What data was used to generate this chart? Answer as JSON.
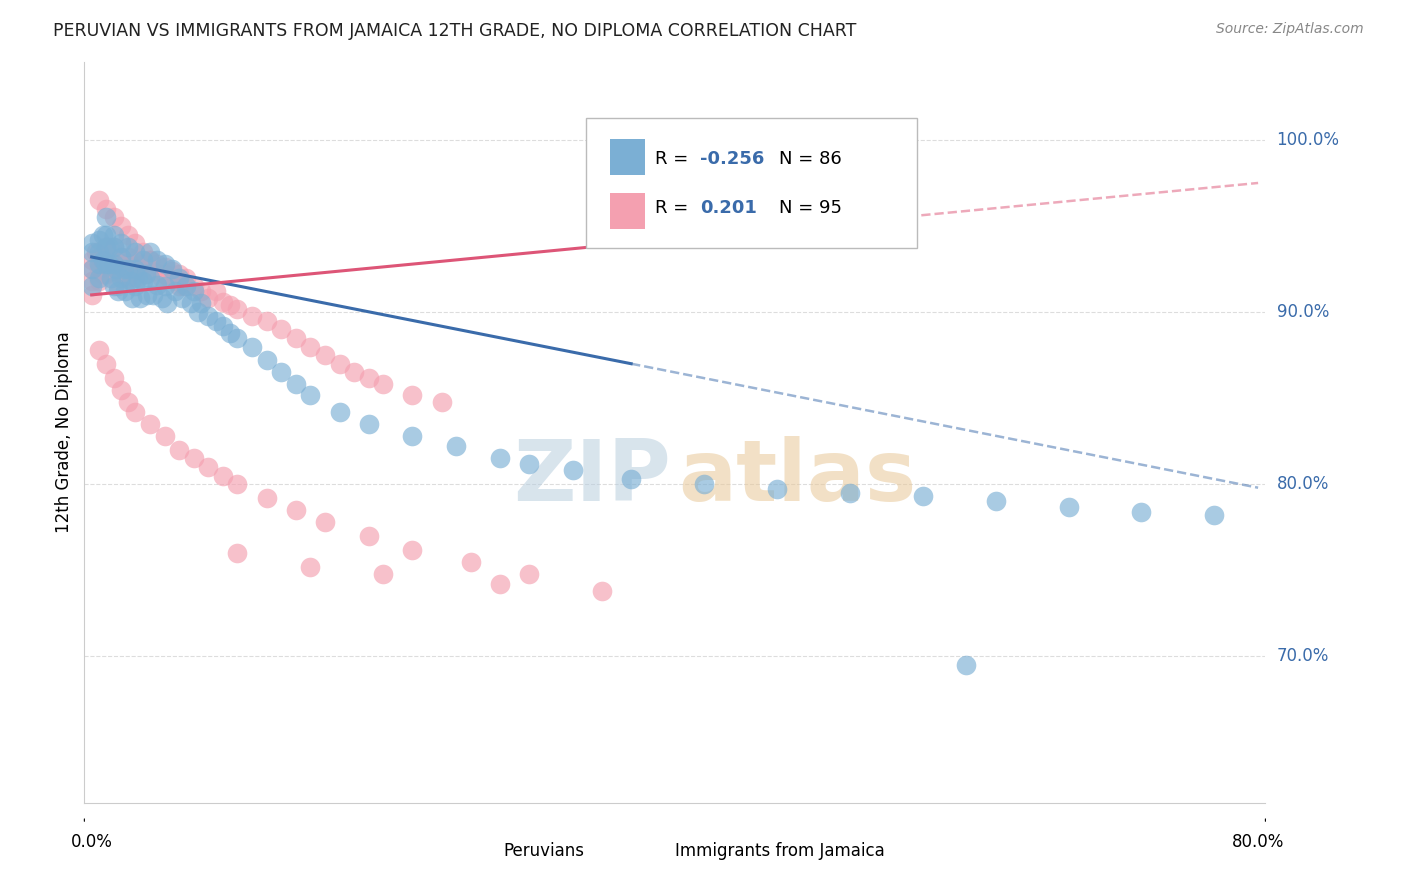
{
  "title": "PERUVIAN VS IMMIGRANTS FROM JAMAICA 12TH GRADE, NO DIPLOMA CORRELATION CHART",
  "source": "Source: ZipAtlas.com",
  "ylabel": "12th Grade, No Diploma",
  "legend_blue_label": "Peruvians",
  "legend_pink_label": "Immigrants from Jamaica",
  "R_blue": -0.256,
  "N_blue": 86,
  "R_pink": 0.201,
  "N_pink": 95,
  "blue_color": "#7BAFD4",
  "pink_color": "#F4A0B0",
  "blue_trend_color": "#3A6BAA",
  "pink_trend_color": "#DD5577",
  "xlim": [
    0.0,
    0.8
  ],
  "ylim": [
    0.615,
    1.045
  ],
  "yticks": [
    0.7,
    0.8,
    0.9,
    1.0
  ],
  "ytick_labels": [
    "70.0%",
    "80.0%",
    "90.0%",
    "100.0%"
  ],
  "blue_trend_x0": 0.0,
  "blue_trend_y0": 0.932,
  "blue_trend_x1": 0.8,
  "blue_trend_y1": 0.798,
  "pink_trend_x0": 0.0,
  "pink_trend_y0": 0.91,
  "pink_trend_x1": 0.8,
  "pink_trend_y1": 0.975,
  "blue_scatter_x": [
    0.0,
    0.0,
    0.0,
    0.0,
    0.005,
    0.005,
    0.005,
    0.005,
    0.008,
    0.008,
    0.01,
    0.01,
    0.01,
    0.01,
    0.012,
    0.012,
    0.013,
    0.015,
    0.015,
    0.015,
    0.015,
    0.017,
    0.018,
    0.02,
    0.02,
    0.02,
    0.022,
    0.023,
    0.025,
    0.025,
    0.027,
    0.028,
    0.03,
    0.03,
    0.03,
    0.032,
    0.033,
    0.035,
    0.035,
    0.037,
    0.038,
    0.04,
    0.04,
    0.042,
    0.045,
    0.045,
    0.048,
    0.05,
    0.05,
    0.052,
    0.055,
    0.057,
    0.06,
    0.062,
    0.065,
    0.068,
    0.07,
    0.073,
    0.075,
    0.08,
    0.085,
    0.09,
    0.095,
    0.1,
    0.11,
    0.12,
    0.13,
    0.14,
    0.15,
    0.17,
    0.19,
    0.22,
    0.25,
    0.28,
    0.3,
    0.33,
    0.37,
    0.42,
    0.47,
    0.52,
    0.57,
    0.62,
    0.67,
    0.72,
    0.77,
    0.6
  ],
  "blue_scatter_y": [
    0.94,
    0.935,
    0.925,
    0.915,
    0.942,
    0.935,
    0.928,
    0.92,
    0.945,
    0.93,
    0.955,
    0.945,
    0.938,
    0.928,
    0.938,
    0.928,
    0.92,
    0.945,
    0.938,
    0.928,
    0.915,
    0.925,
    0.912,
    0.94,
    0.932,
    0.92,
    0.925,
    0.912,
    0.938,
    0.925,
    0.918,
    0.908,
    0.935,
    0.925,
    0.915,
    0.92,
    0.908,
    0.93,
    0.918,
    0.922,
    0.91,
    0.935,
    0.92,
    0.91,
    0.93,
    0.916,
    0.908,
    0.928,
    0.915,
    0.905,
    0.925,
    0.912,
    0.92,
    0.908,
    0.915,
    0.905,
    0.912,
    0.9,
    0.905,
    0.898,
    0.895,
    0.892,
    0.888,
    0.885,
    0.88,
    0.872,
    0.865,
    0.858,
    0.852,
    0.842,
    0.835,
    0.828,
    0.822,
    0.815,
    0.812,
    0.808,
    0.803,
    0.8,
    0.797,
    0.795,
    0.793,
    0.79,
    0.787,
    0.784,
    0.782,
    0.695
  ],
  "pink_scatter_x": [
    0.0,
    0.0,
    0.0,
    0.0,
    0.003,
    0.005,
    0.005,
    0.005,
    0.007,
    0.008,
    0.01,
    0.01,
    0.01,
    0.012,
    0.013,
    0.015,
    0.015,
    0.017,
    0.018,
    0.02,
    0.02,
    0.022,
    0.025,
    0.025,
    0.027,
    0.03,
    0.03,
    0.032,
    0.035,
    0.037,
    0.04,
    0.042,
    0.045,
    0.048,
    0.05,
    0.053,
    0.055,
    0.058,
    0.06,
    0.063,
    0.065,
    0.07,
    0.075,
    0.08,
    0.085,
    0.09,
    0.095,
    0.1,
    0.11,
    0.12,
    0.13,
    0.14,
    0.15,
    0.16,
    0.17,
    0.18,
    0.19,
    0.2,
    0.22,
    0.24,
    0.005,
    0.01,
    0.015,
    0.02,
    0.025,
    0.03,
    0.035,
    0.04,
    0.05,
    0.06,
    0.005,
    0.01,
    0.015,
    0.02,
    0.025,
    0.03,
    0.04,
    0.05,
    0.06,
    0.07,
    0.08,
    0.09,
    0.1,
    0.12,
    0.14,
    0.16,
    0.19,
    0.22,
    0.26,
    0.3,
    0.1,
    0.15,
    0.2,
    0.28,
    0.35
  ],
  "pink_scatter_y": [
    0.93,
    0.925,
    0.918,
    0.91,
    0.935,
    0.932,
    0.925,
    0.918,
    0.93,
    0.922,
    0.938,
    0.93,
    0.922,
    0.932,
    0.924,
    0.938,
    0.928,
    0.925,
    0.915,
    0.932,
    0.922,
    0.928,
    0.932,
    0.92,
    0.928,
    0.93,
    0.92,
    0.925,
    0.928,
    0.922,
    0.93,
    0.924,
    0.928,
    0.92,
    0.926,
    0.92,
    0.924,
    0.918,
    0.922,
    0.915,
    0.92,
    0.915,
    0.912,
    0.908,
    0.912,
    0.906,
    0.904,
    0.902,
    0.898,
    0.895,
    0.89,
    0.885,
    0.88,
    0.875,
    0.87,
    0.865,
    0.862,
    0.858,
    0.852,
    0.848,
    0.965,
    0.96,
    0.955,
    0.95,
    0.945,
    0.94,
    0.935,
    0.93,
    0.922,
    0.915,
    0.878,
    0.87,
    0.862,
    0.855,
    0.848,
    0.842,
    0.835,
    0.828,
    0.82,
    0.815,
    0.81,
    0.805,
    0.8,
    0.792,
    0.785,
    0.778,
    0.77,
    0.762,
    0.755,
    0.748,
    0.76,
    0.752,
    0.748,
    0.742,
    0.738
  ],
  "grid_color": "#DDDDDD",
  "background_color": "#FFFFFF"
}
